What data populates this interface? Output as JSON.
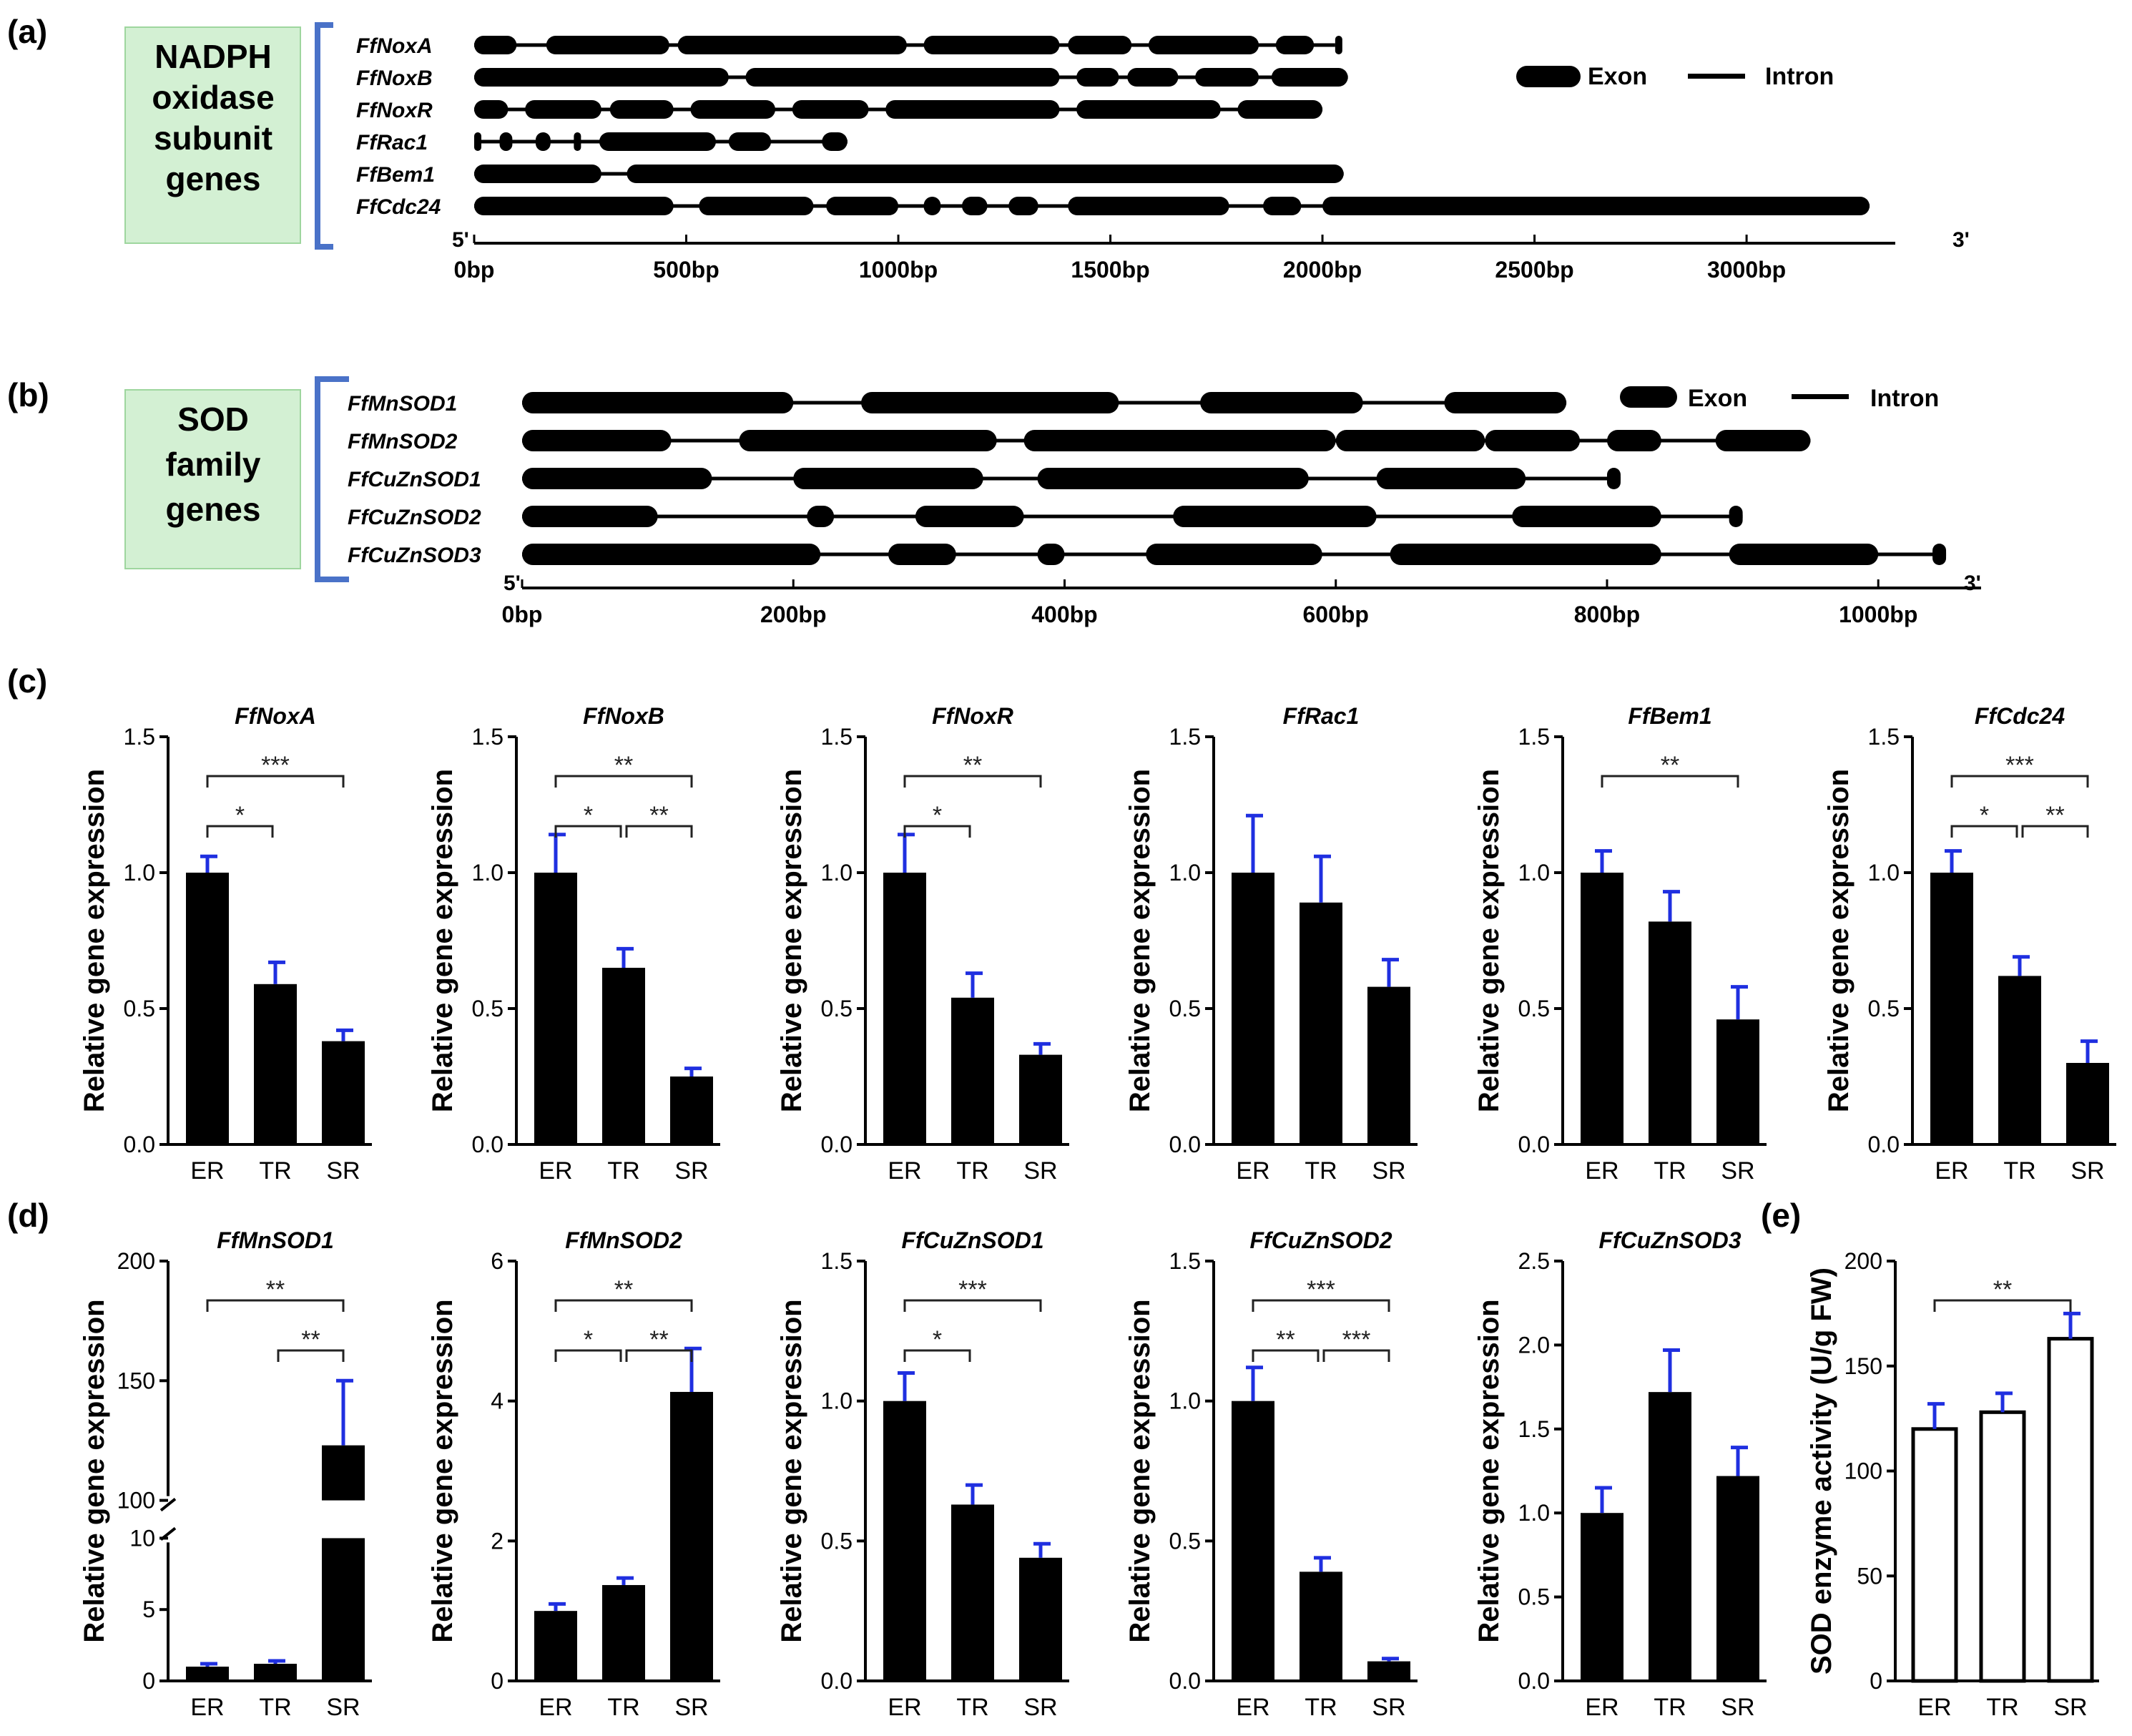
{
  "panel_labels": {
    "a": "(a)",
    "b": "(b)",
    "c": "(c)",
    "d": "(d)",
    "e": "(e)"
  },
  "colors": {
    "bar": "#000000",
    "error": "#1f2fe0",
    "sig": "#222222",
    "boxfill": "#d3f0d3",
    "boxborder": "#9ed69e",
    "bracket": "#4a72c8"
  },
  "gene_structure": {
    "legend": {
      "exon": "Exon",
      "intron": "Intron"
    },
    "five_prime": "5'",
    "three_prime": "3'",
    "nadph": {
      "box_lines": [
        "NADPH",
        "oxidase",
        "subunit",
        "genes"
      ],
      "axis_max": 3300,
      "ticks": [
        0,
        500,
        1000,
        1500,
        2000,
        2500,
        3000
      ],
      "tick_labels": [
        "0bp",
        "500bp",
        "1000bp",
        "1500bp",
        "2000bp",
        "2500bp",
        "3000bp"
      ],
      "genes": [
        {
          "name": "FfNoxA",
          "length": 2030,
          "exons": [
            [
              0,
              100
            ],
            [
              170,
              460
            ],
            [
              480,
              1020
            ],
            [
              1060,
              1380
            ],
            [
              1400,
              1550
            ],
            [
              1590,
              1850
            ],
            [
              1890,
              1980
            ],
            [
              2030,
              2030
            ]
          ]
        },
        {
          "name": "FfNoxB",
          "length": 2060,
          "exons": [
            [
              0,
              600
            ],
            [
              640,
              1380
            ],
            [
              1420,
              1520
            ],
            [
              1540,
              1660
            ],
            [
              1700,
              1850
            ],
            [
              1880,
              2060
            ]
          ]
        },
        {
          "name": "FfNoxR",
          "length": 2000,
          "exons": [
            [
              0,
              80
            ],
            [
              120,
              300
            ],
            [
              320,
              470
            ],
            [
              510,
              710
            ],
            [
              750,
              930
            ],
            [
              970,
              1380
            ],
            [
              1420,
              1760
            ],
            [
              1800,
              2000
            ]
          ]
        },
        {
          "name": "FfRac1",
          "length": 880,
          "exons": [
            [
              0,
              5
            ],
            [
              60,
              90
            ],
            [
              145,
              180
            ],
            [
              235,
              250
            ],
            [
              295,
              570
            ],
            [
              600,
              700
            ],
            [
              820,
              880
            ]
          ]
        },
        {
          "name": "FfBem1",
          "length": 2050,
          "exons": [
            [
              0,
              300
            ],
            [
              360,
              2050
            ]
          ]
        },
        {
          "name": "FfCdc24",
          "length": 3290,
          "exons": [
            [
              0,
              470
            ],
            [
              530,
              800
            ],
            [
              830,
              1000
            ],
            [
              1060,
              1100
            ],
            [
              1150,
              1210
            ],
            [
              1260,
              1330
            ],
            [
              1400,
              1780
            ],
            [
              1860,
              1950
            ],
            [
              2000,
              3290
            ]
          ]
        }
      ]
    },
    "sod": {
      "box_lines": [
        "SOD",
        "family",
        "genes"
      ],
      "axis_max": 1060,
      "ticks": [
        0,
        200,
        400,
        600,
        800,
        1000
      ],
      "tick_labels": [
        "0bp",
        "200bp",
        "400bp",
        "600bp",
        "800bp",
        "1000bp"
      ],
      "genes": [
        {
          "name": "FfMnSOD1",
          "length": 770,
          "exons": [
            [
              0,
              200
            ],
            [
              250,
              440
            ],
            [
              500,
              620
            ],
            [
              680,
              770
            ]
          ]
        },
        {
          "name": "FfMnSOD2",
          "length": 950,
          "exons": [
            [
              0,
              110
            ],
            [
              160,
              350
            ],
            [
              370,
              600
            ],
            [
              600,
              710
            ],
            [
              710,
              780
            ],
            [
              800,
              840
            ],
            [
              880,
              950
            ]
          ]
        },
        {
          "name": "FfCuZnSOD1",
          "length": 810,
          "exons": [
            [
              0,
              140
            ],
            [
              200,
              340
            ],
            [
              380,
              580
            ],
            [
              630,
              740
            ],
            [
              800,
              810
            ]
          ]
        },
        {
          "name": "FfCuZnSOD2",
          "length": 900,
          "exons": [
            [
              0,
              100
            ],
            [
              210,
              230
            ],
            [
              290,
              370
            ],
            [
              480,
              630
            ],
            [
              730,
              840
            ],
            [
              890,
              900
            ]
          ]
        },
        {
          "name": "FfCuZnSOD3",
          "length": 1050,
          "exons": [
            [
              0,
              220
            ],
            [
              270,
              320
            ],
            [
              380,
              400
            ],
            [
              460,
              590
            ],
            [
              640,
              840
            ],
            [
              890,
              1000
            ],
            [
              1040,
              1050
            ]
          ]
        }
      ]
    }
  },
  "chart_data": [
    {
      "type": "bar",
      "panel": "c",
      "title": "FfNoxA",
      "ylabel": "Relative gene expression",
      "categories": [
        "ER",
        "TR",
        "SR"
      ],
      "values": [
        1.0,
        0.59,
        0.38
      ],
      "errors": [
        0.06,
        0.08,
        0.04
      ],
      "ylim": [
        0,
        1.5
      ],
      "yticks": [
        0,
        0.5,
        1.0,
        1.5
      ],
      "ytick_labels": [
        "0.0",
        "0.5",
        "1.0",
        "1.5"
      ],
      "sig": [
        {
          "from": 0,
          "to": 2,
          "label": "***",
          "level": 2
        },
        {
          "from": 0,
          "to": 1,
          "label": "*",
          "level": 1
        }
      ]
    },
    {
      "type": "bar",
      "panel": "c",
      "title": "FfNoxB",
      "ylabel": "Relative gene expression",
      "categories": [
        "ER",
        "TR",
        "SR"
      ],
      "values": [
        1.0,
        0.65,
        0.25
      ],
      "errors": [
        0.14,
        0.07,
        0.03
      ],
      "ylim": [
        0,
        1.5
      ],
      "yticks": [
        0,
        0.5,
        1.0,
        1.5
      ],
      "ytick_labels": [
        "0.0",
        "0.5",
        "1.0",
        "1.5"
      ],
      "sig": [
        {
          "from": 0,
          "to": 2,
          "label": "**",
          "level": 2
        },
        {
          "from": 0,
          "to": 1,
          "label": "*",
          "level": 1
        },
        {
          "from": 1,
          "to": 2,
          "label": "**",
          "level": 1
        }
      ]
    },
    {
      "type": "bar",
      "panel": "c",
      "title": "FfNoxR",
      "ylabel": "Relative gene expression",
      "categories": [
        "ER",
        "TR",
        "SR"
      ],
      "values": [
        1.0,
        0.54,
        0.33
      ],
      "errors": [
        0.14,
        0.09,
        0.04
      ],
      "ylim": [
        0,
        1.5
      ],
      "yticks": [
        0,
        0.5,
        1.0,
        1.5
      ],
      "ytick_labels": [
        "0.0",
        "0.5",
        "1.0",
        "1.5"
      ],
      "sig": [
        {
          "from": 0,
          "to": 2,
          "label": "**",
          "level": 2
        },
        {
          "from": 0,
          "to": 1,
          "label": "*",
          "level": 1
        }
      ]
    },
    {
      "type": "bar",
      "panel": "c",
      "title": "FfRac1",
      "ylabel": "Relative gene expression",
      "categories": [
        "ER",
        "TR",
        "SR"
      ],
      "values": [
        1.0,
        0.89,
        0.58
      ],
      "errors": [
        0.21,
        0.17,
        0.1
      ],
      "ylim": [
        0,
        1.5
      ],
      "yticks": [
        0,
        0.5,
        1.0,
        1.5
      ],
      "ytick_labels": [
        "0.0",
        "0.5",
        "1.0",
        "1.5"
      ],
      "sig": []
    },
    {
      "type": "bar",
      "panel": "c",
      "title": "FfBem1",
      "ylabel": "Relative gene expression",
      "categories": [
        "ER",
        "TR",
        "SR"
      ],
      "values": [
        1.0,
        0.82,
        0.46
      ],
      "errors": [
        0.08,
        0.11,
        0.12
      ],
      "ylim": [
        0,
        1.5
      ],
      "yticks": [
        0,
        0.5,
        1.0,
        1.5
      ],
      "ytick_labels": [
        "0.0",
        "0.5",
        "1.0",
        "1.5"
      ],
      "sig": [
        {
          "from": 0,
          "to": 2,
          "label": "**",
          "level": 2
        }
      ]
    },
    {
      "type": "bar",
      "panel": "c",
      "title": "FfCdc24",
      "ylabel": "Relative gene expression",
      "categories": [
        "ER",
        "TR",
        "SR"
      ],
      "values": [
        1.0,
        0.62,
        0.3
      ],
      "errors": [
        0.08,
        0.07,
        0.08
      ],
      "ylim": [
        0,
        1.5
      ],
      "yticks": [
        0,
        0.5,
        1.0,
        1.5
      ],
      "ytick_labels": [
        "0.0",
        "0.5",
        "1.0",
        "1.5"
      ],
      "sig": [
        {
          "from": 0,
          "to": 2,
          "label": "***",
          "level": 2
        },
        {
          "from": 0,
          "to": 1,
          "label": "*",
          "level": 1
        },
        {
          "from": 1,
          "to": 2,
          "label": "**",
          "level": 1
        }
      ]
    },
    {
      "type": "bar",
      "panel": "d",
      "title": "FfMnSOD1",
      "ylabel": "Relative gene expression",
      "categories": [
        "ER",
        "TR",
        "SR"
      ],
      "values": [
        1.0,
        1.2,
        123
      ],
      "errors": [
        0.2,
        0.2,
        27
      ],
      "ylim": [
        0,
        200
      ],
      "axis_break": [
        10,
        100
      ],
      "yticks": [
        0,
        5,
        10,
        100,
        150,
        200
      ],
      "ytick_labels": [
        "0",
        "5",
        "10",
        "100",
        "150",
        "200"
      ],
      "sig": [
        {
          "from": 0,
          "to": 2,
          "label": "**",
          "level": 2
        },
        {
          "from": 1,
          "to": 2,
          "label": "**",
          "level": 1
        }
      ]
    },
    {
      "type": "bar",
      "panel": "d",
      "title": "FfMnSOD2",
      "ylabel": "Relative gene expression",
      "categories": [
        "ER",
        "TR",
        "SR"
      ],
      "values": [
        1.0,
        1.37,
        4.13
      ],
      "errors": [
        0.1,
        0.1,
        0.62
      ],
      "ylim": [
        0,
        6
      ],
      "yticks": [
        0,
        2,
        4,
        6
      ],
      "ytick_labels": [
        "0",
        "2",
        "4",
        "6"
      ],
      "sig": [
        {
          "from": 0,
          "to": 2,
          "label": "**",
          "level": 2
        },
        {
          "from": 0,
          "to": 1,
          "label": "*",
          "level": 1
        },
        {
          "from": 1,
          "to": 2,
          "label": "**",
          "level": 1
        }
      ]
    },
    {
      "type": "bar",
      "panel": "d",
      "title": "FfCuZnSOD1",
      "ylabel": "Relative gene expression",
      "categories": [
        "ER",
        "TR",
        "SR"
      ],
      "values": [
        1.0,
        0.63,
        0.44
      ],
      "errors": [
        0.1,
        0.07,
        0.05
      ],
      "ylim": [
        0,
        1.5
      ],
      "yticks": [
        0,
        0.5,
        1.0,
        1.5
      ],
      "ytick_labels": [
        "0.0",
        "0.5",
        "1.0",
        "1.5"
      ],
      "sig": [
        {
          "from": 0,
          "to": 2,
          "label": "***",
          "level": 2
        },
        {
          "from": 0,
          "to": 1,
          "label": "*",
          "level": 1
        }
      ]
    },
    {
      "type": "bar",
      "panel": "d",
      "title": "FfCuZnSOD2",
      "ylabel": "Relative gene expression",
      "categories": [
        "ER",
        "TR",
        "SR"
      ],
      "values": [
        1.0,
        0.39,
        0.07
      ],
      "errors": [
        0.12,
        0.05,
        0.01
      ],
      "ylim": [
        0,
        1.5
      ],
      "yticks": [
        0,
        0.5,
        1.0,
        1.5
      ],
      "ytick_labels": [
        "0.0",
        "0.5",
        "1.0",
        "1.5"
      ],
      "sig": [
        {
          "from": 0,
          "to": 2,
          "label": "***",
          "level": 2
        },
        {
          "from": 0,
          "to": 1,
          "label": "**",
          "level": 1
        },
        {
          "from": 1,
          "to": 2,
          "label": "***",
          "level": 1
        }
      ]
    },
    {
      "type": "bar",
      "panel": "d",
      "title": "FfCuZnSOD3",
      "ylabel": "Relative gene expression",
      "categories": [
        "ER",
        "TR",
        "SR"
      ],
      "values": [
        1.0,
        1.72,
        1.22
      ],
      "errors": [
        0.15,
        0.25,
        0.17
      ],
      "ylim": [
        0,
        2.5
      ],
      "yticks": [
        0,
        0.5,
        1.0,
        1.5,
        2.0,
        2.5
      ],
      "ytick_labels": [
        "0.0",
        "0.5",
        "1.0",
        "1.5",
        "2.0",
        "2.5"
      ],
      "sig": []
    },
    {
      "type": "bar",
      "panel": "e",
      "title": "",
      "hollow": true,
      "ylabel": "SOD enzyme activity (U/g FW)",
      "categories": [
        "ER",
        "TR",
        "SR"
      ],
      "values": [
        120,
        128,
        163
      ],
      "errors": [
        12,
        9,
        12
      ],
      "ylim": [
        0,
        200
      ],
      "yticks": [
        0,
        50,
        100,
        150,
        200
      ],
      "ytick_labels": [
        "0",
        "50",
        "100",
        "150",
        "200"
      ],
      "sig": [
        {
          "from": 0,
          "to": 2,
          "label": "**",
          "level": 2
        }
      ]
    }
  ]
}
